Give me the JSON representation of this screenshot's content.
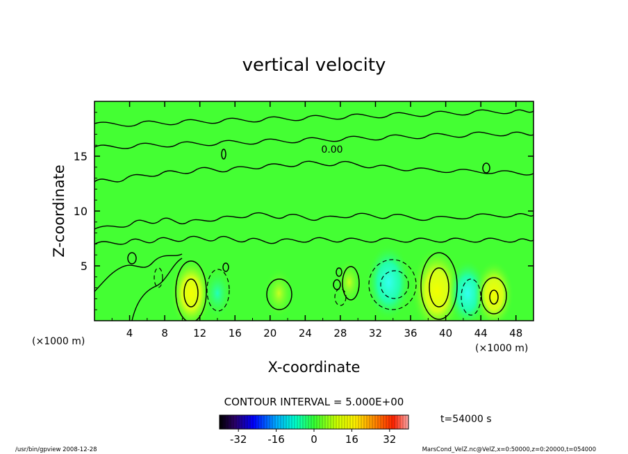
{
  "chart_data": {
    "type": "heatmap",
    "title": "vertical velocity",
    "xlabel": "X-coordinate",
    "ylabel": "Z-coordinate",
    "x_unit_label": "(×1000 m)",
    "x_unit_label_left": "(×1000 m)",
    "xlim": [
      0,
      50
    ],
    "ylim": [
      0,
      20
    ],
    "x_ticks": [
      "4",
      "8",
      "12",
      "16",
      "20",
      "24",
      "28",
      "32",
      "36",
      "40",
      "44",
      "48"
    ],
    "y_ticks": [
      "5",
      "10",
      "15"
    ],
    "contour_interval_text": "CONTOUR INTERVAL = 5.000E+00",
    "contour_label": "0.00",
    "time_text": "t=54000 s",
    "colorbar": {
      "range": [
        -40,
        40
      ],
      "tick_labels": [
        "-32",
        "-16",
        "0",
        "16",
        "32"
      ],
      "tick_values": [
        -32,
        -16,
        0,
        16,
        32
      ]
    },
    "cells": [
      {
        "x": 11,
        "z": 2.5,
        "value": 20
      },
      {
        "x": 14,
        "z": 2.5,
        "value": -10
      },
      {
        "x": 21,
        "z": 2.5,
        "value": 10
      },
      {
        "x": 29,
        "z": 3.5,
        "value": 8
      },
      {
        "x": 33.5,
        "z": 3.5,
        "value": -22
      },
      {
        "x": 39,
        "z": 2.7,
        "value": 28
      },
      {
        "x": 42.5,
        "z": 2.5,
        "value": -18
      },
      {
        "x": 45.5,
        "z": 2.4,
        "value": 18
      }
    ],
    "grid": false
  },
  "footer": {
    "left": "/usr/bin/gpview  2008-12-28",
    "right": "MarsCond_VelZ.nc@VelZ,x=0:50000,z=0:20000,t=054000"
  }
}
